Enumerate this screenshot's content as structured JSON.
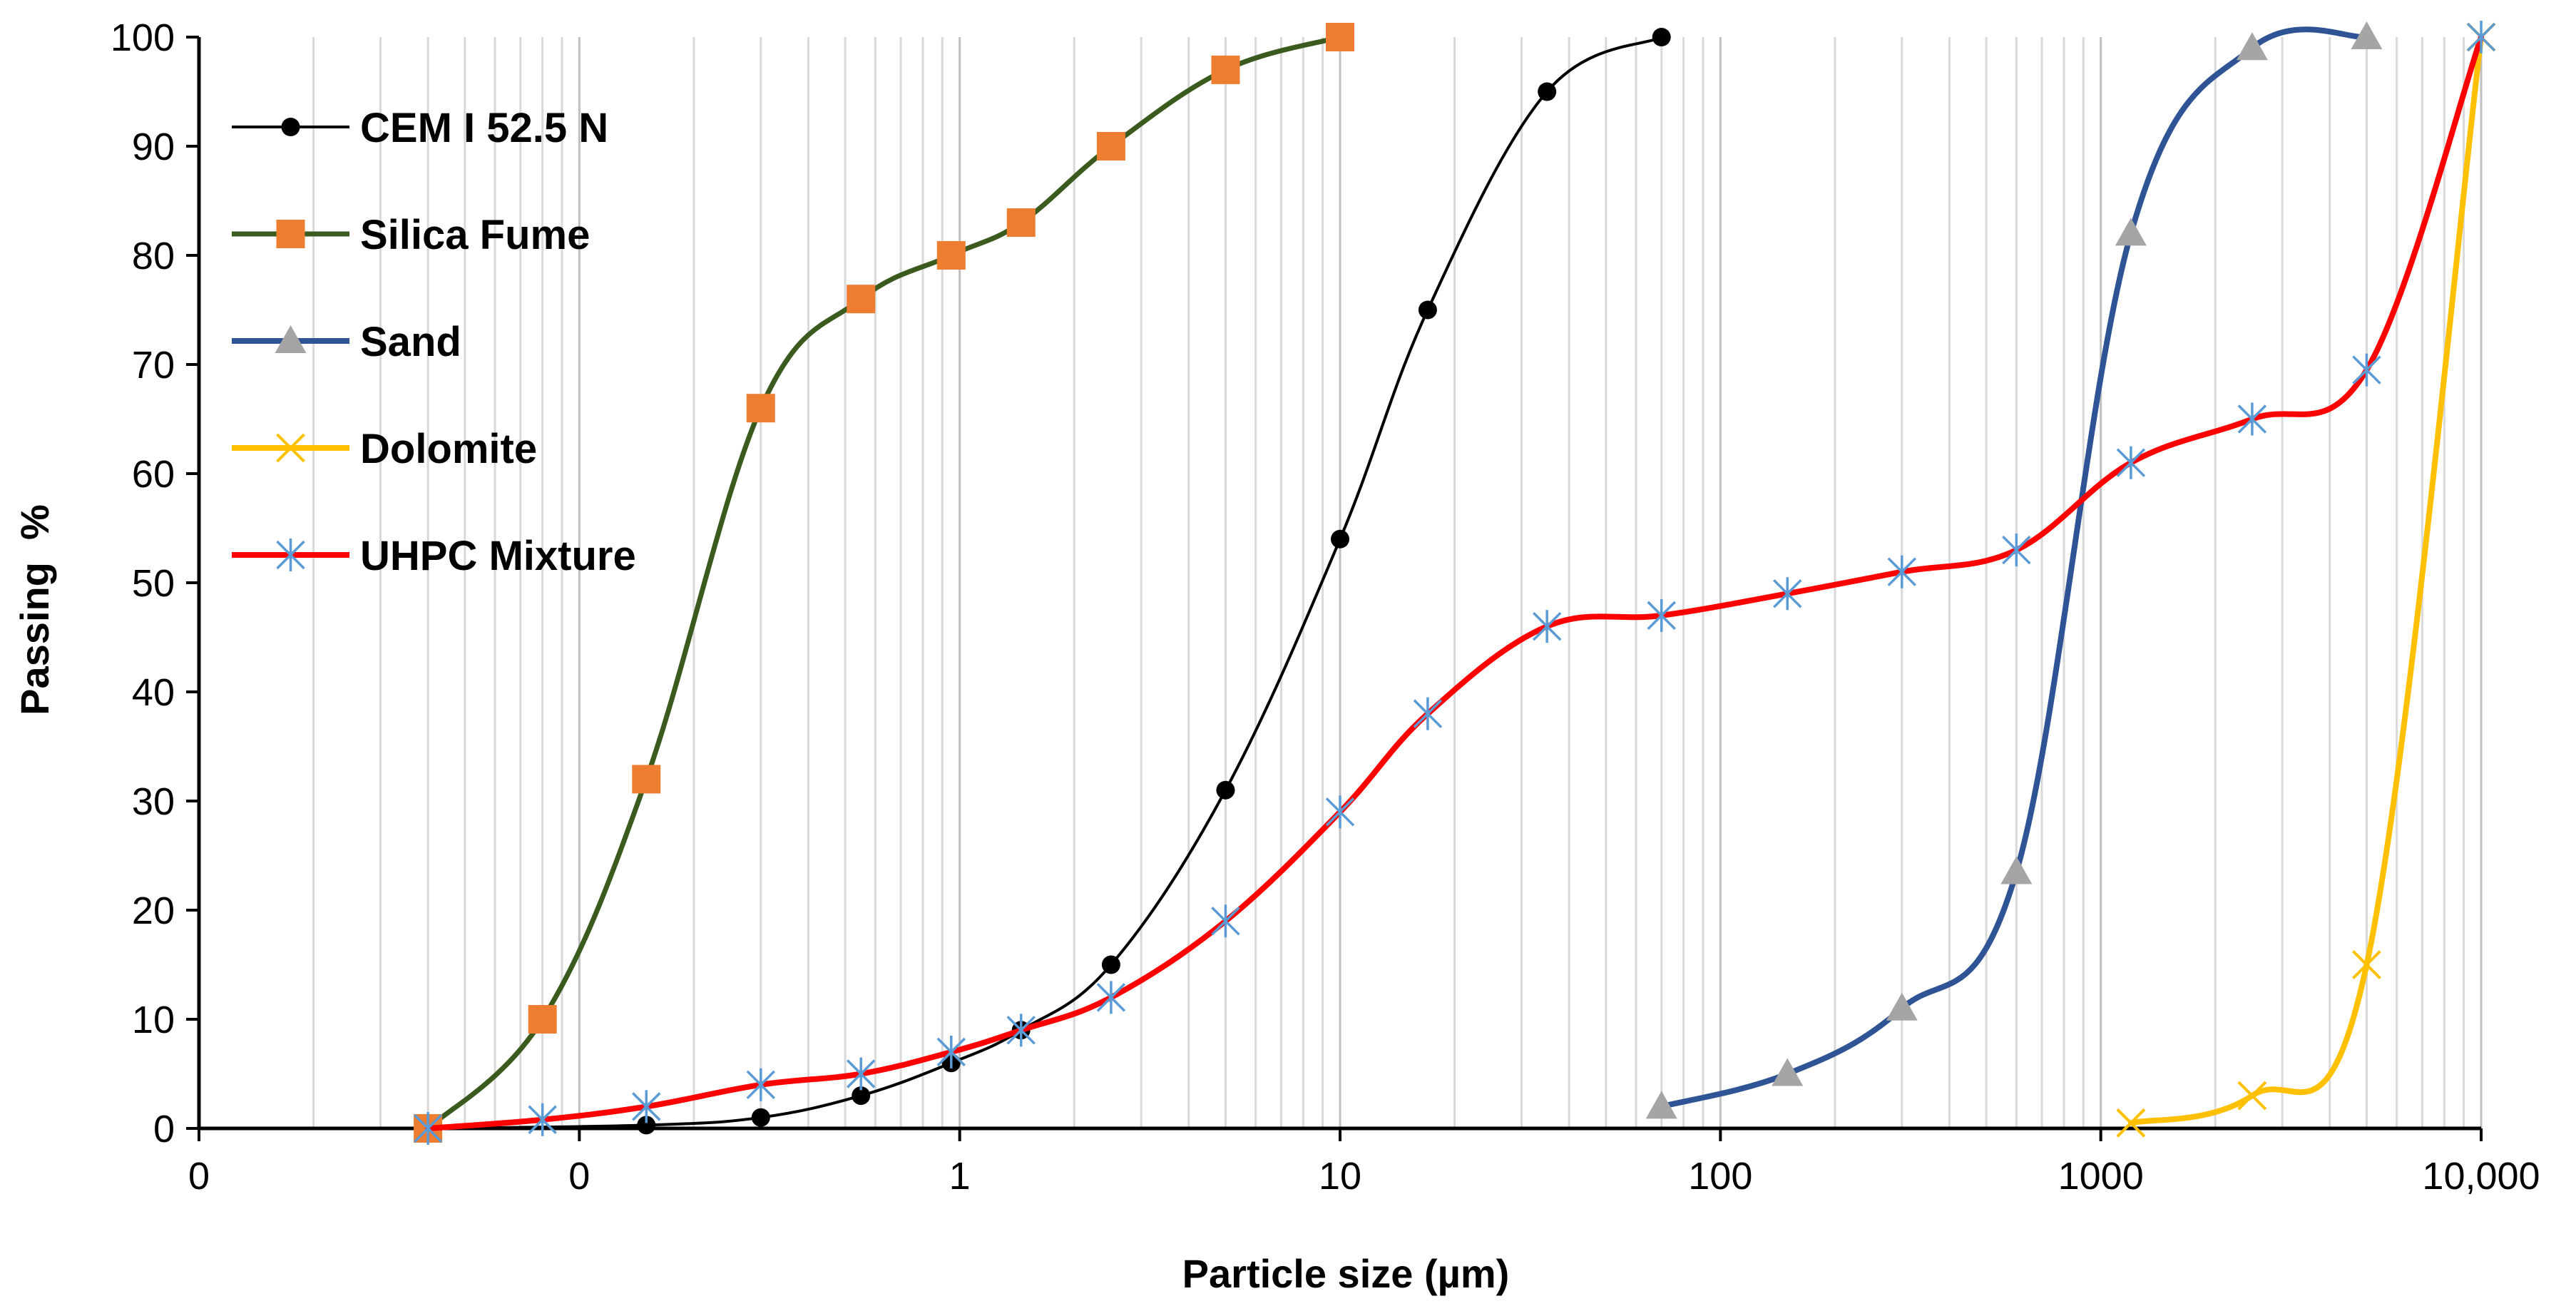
{
  "colors": {
    "background": "#ffffff",
    "axis": "#000000",
    "grid": "#d9d9d9",
    "cem": "#000000",
    "silica_line": "#3a5a1e",
    "silica_marker": "#ed7d31",
    "sand_line": "#2e5496",
    "sand_marker": "#a5a5a5",
    "dolomite": "#ffc000",
    "uhpc_line": "#ff0000",
    "uhpc_marker": "#5b9bd5"
  },
  "chart_data": {
    "type": "line",
    "title": "",
    "xlabel": "Particle size (µm)",
    "ylabel": "Passing  %",
    "x_scale": "log",
    "xlim": [
      0.01,
      10000
    ],
    "ylim": [
      0,
      100
    ],
    "grid": "vertical minor + major",
    "legend_position": "top-left",
    "x_ticks": [
      {
        "value": 0.01,
        "label": "0"
      },
      {
        "value": 0.1,
        "label": "0"
      },
      {
        "value": 1,
        "label": "1"
      },
      {
        "value": 10,
        "label": "10"
      },
      {
        "value": 100,
        "label": "100"
      },
      {
        "value": 1000,
        "label": "1000"
      },
      {
        "value": 10000,
        "label": "10,000"
      }
    ],
    "y_ticks": [
      0,
      10,
      20,
      30,
      40,
      50,
      60,
      70,
      80,
      90,
      100
    ],
    "series": [
      {
        "name": "CEM I 52.5 N",
        "key": "cem",
        "marker": "circle",
        "points": [
          [
            0.04,
            0
          ],
          [
            0.15,
            0.3
          ],
          [
            0.3,
            1
          ],
          [
            0.55,
            3
          ],
          [
            0.95,
            6
          ],
          [
            1.45,
            9
          ],
          [
            2.5,
            15
          ],
          [
            5,
            31
          ],
          [
            10,
            54
          ],
          [
            17,
            75
          ],
          [
            35,
            95
          ],
          [
            70,
            100
          ]
        ]
      },
      {
        "name": "Silica Fume",
        "key": "silica",
        "marker": "square",
        "points": [
          [
            0.04,
            0
          ],
          [
            0.08,
            10
          ],
          [
            0.15,
            32
          ],
          [
            0.3,
            66
          ],
          [
            0.55,
            76
          ],
          [
            0.95,
            80
          ],
          [
            1.45,
            83
          ],
          [
            2.5,
            90
          ],
          [
            5,
            97
          ],
          [
            10,
            100
          ]
        ]
      },
      {
        "name": "Sand",
        "key": "sand",
        "marker": "triangle",
        "points": [
          [
            70,
            2
          ],
          [
            150,
            5
          ],
          [
            300,
            11
          ],
          [
            600,
            23.5
          ],
          [
            1200,
            82
          ],
          [
            2500,
            99
          ],
          [
            5000,
            100
          ]
        ]
      },
      {
        "name": "Dolomite",
        "key": "dolomite",
        "marker": "x",
        "points": [
          [
            1200,
            0.5
          ],
          [
            2500,
            3
          ],
          [
            5000,
            15
          ],
          [
            10000,
            100
          ]
        ]
      },
      {
        "name": "UHPC Mixture",
        "key": "uhpc",
        "marker": "star",
        "points": [
          [
            0.04,
            0
          ],
          [
            0.08,
            0.8
          ],
          [
            0.15,
            2
          ],
          [
            0.3,
            4
          ],
          [
            0.55,
            5
          ],
          [
            0.95,
            7
          ],
          [
            1.45,
            9
          ],
          [
            2.5,
            12
          ],
          [
            5,
            19
          ],
          [
            10,
            29
          ],
          [
            17,
            38
          ],
          [
            35,
            46
          ],
          [
            70,
            47
          ],
          [
            150,
            49
          ],
          [
            300,
            51
          ],
          [
            600,
            53
          ],
          [
            1200,
            61
          ],
          [
            2500,
            65
          ],
          [
            5000,
            69.5
          ],
          [
            10000,
            100
          ]
        ]
      }
    ]
  }
}
